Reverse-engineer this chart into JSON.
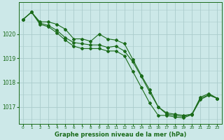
{
  "title": "Graphe pression niveau de la mer (hPa)",
  "bg_color": "#cce8e8",
  "grid_color": "#aacccc",
  "line_color": "#1a6b1a",
  "xlim": [
    -0.5,
    23.5
  ],
  "ylim": [
    1016.3,
    1021.3
  ],
  "yticks": [
    1017,
    1018,
    1019,
    1020
  ],
  "xticks": [
    0,
    1,
    2,
    3,
    4,
    5,
    6,
    7,
    8,
    9,
    10,
    11,
    12,
    13,
    14,
    15,
    16,
    17,
    18,
    19,
    20,
    21,
    22,
    23
  ],
  "series": [
    [
      1020.6,
      1020.9,
      1020.5,
      1020.5,
      1020.4,
      1020.2,
      1019.8,
      1019.8,
      1019.7,
      1020.0,
      1019.8,
      1019.75,
      1019.6,
      1018.95,
      1018.3,
      1017.7,
      1017.0,
      1016.75,
      1016.7,
      1016.65,
      1016.7,
      1017.4,
      1017.55,
      1017.35
    ],
    [
      1020.6,
      1020.9,
      1020.45,
      1020.35,
      1020.15,
      1019.85,
      1019.65,
      1019.6,
      1019.55,
      1019.55,
      1019.45,
      1019.5,
      1019.3,
      1018.85,
      1018.25,
      1017.6,
      1017.0,
      1016.7,
      1016.65,
      1016.6,
      1016.7,
      1017.35,
      1017.5,
      1017.35
    ],
    [
      1020.6,
      1020.9,
      1020.4,
      1020.3,
      1020.05,
      1019.75,
      1019.5,
      1019.4,
      1019.4,
      1019.4,
      1019.3,
      1019.3,
      1019.1,
      1018.45,
      1017.8,
      1017.15,
      1016.65,
      1016.65,
      1016.58,
      1016.55,
      1016.68,
      1017.3,
      1017.48,
      1017.35
    ]
  ]
}
